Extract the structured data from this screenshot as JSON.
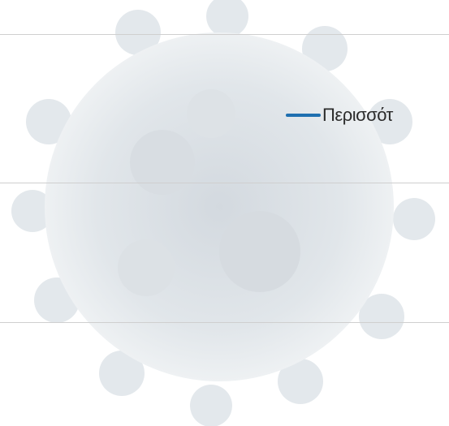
{
  "link": {
    "label": "Περισσότ"
  }
}
